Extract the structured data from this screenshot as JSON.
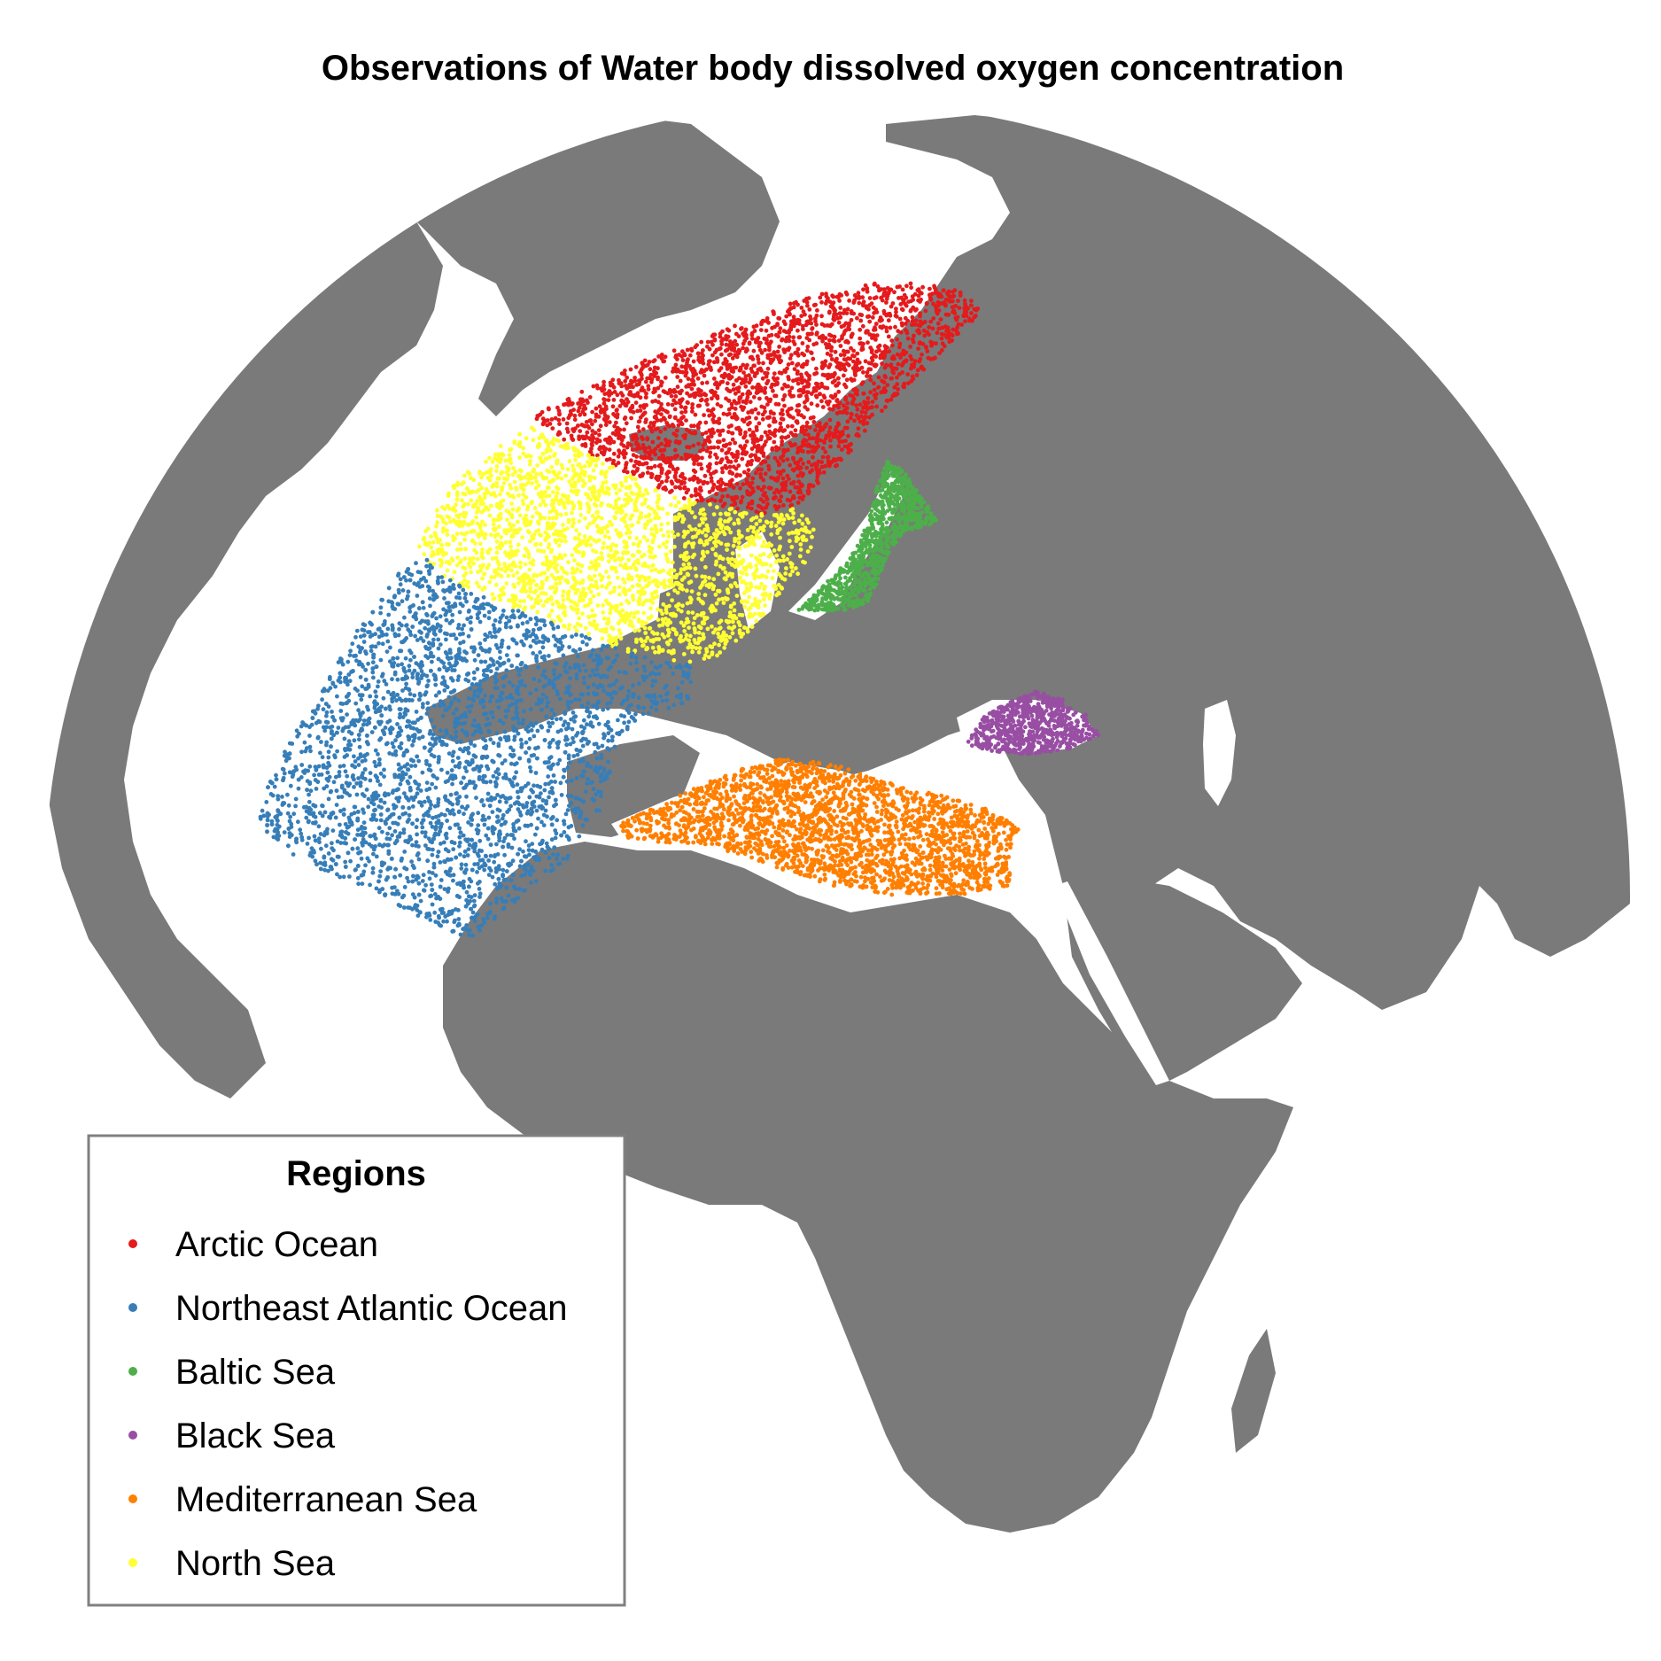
{
  "title": "Observations of Water body dissolved oxygen concentration",
  "legend": {
    "title": "Regions",
    "items": [
      {
        "label": "Arctic Ocean",
        "color": "#e41a1c"
      },
      {
        "label": "Northeast Atlantic Ocean",
        "color": "#377eb8"
      },
      {
        "label": "Baltic Sea",
        "color": "#4daf4a"
      },
      {
        "label": "Black Sea",
        "color": "#984ea3"
      },
      {
        "label": "Mediterranean Sea",
        "color": "#ff7f00"
      },
      {
        "label": "North Sea",
        "color": "#ffff33"
      }
    ]
  },
  "colors": {
    "land": "#7a7a7a",
    "ocean": "#ffffff"
  }
}
